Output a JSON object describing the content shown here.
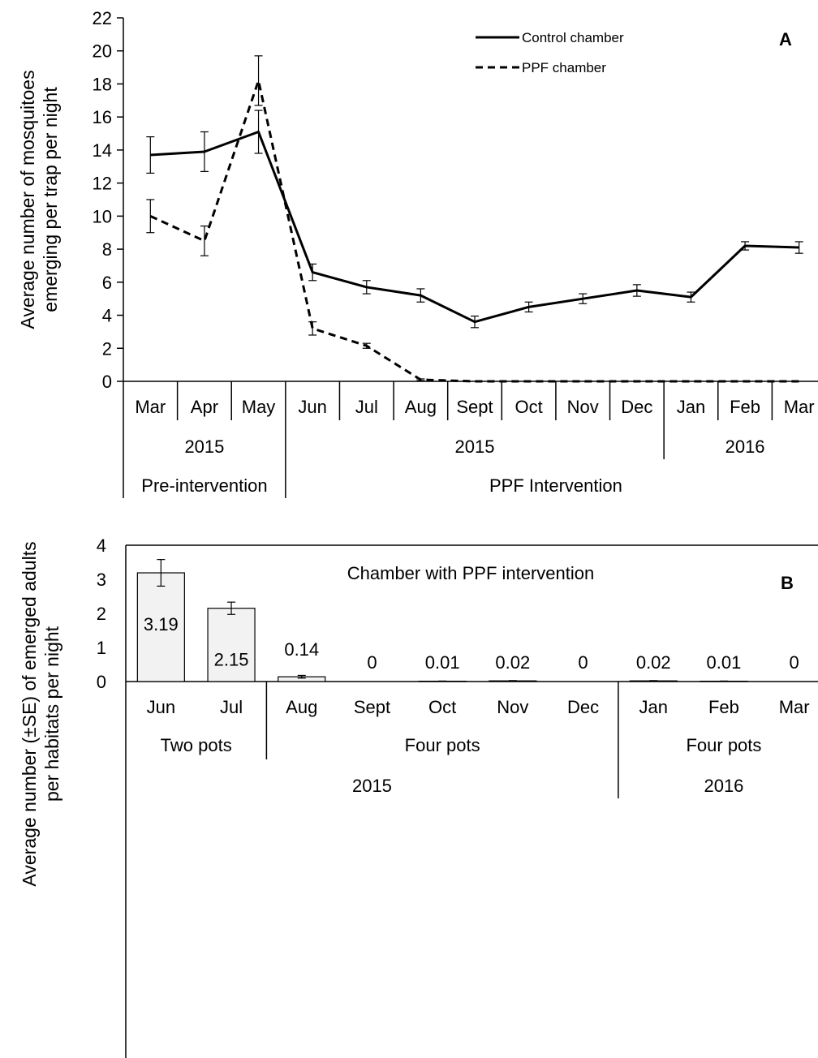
{
  "chart_data": [
    {
      "type": "line",
      "panel_label": "A",
      "ylabel_lines": [
        "Average number of mosquitoes",
        "emerging per trap per night"
      ],
      "ylim": [
        0,
        22
      ],
      "yticks": [
        "0",
        "2",
        "4",
        "6",
        "8",
        "10",
        "12",
        "14",
        "16",
        "18",
        "20",
        "22"
      ],
      "categories": [
        "Mar",
        "Apr",
        "May",
        "Jun",
        "Jul",
        "Aug",
        "Sept",
        "Oct",
        "Nov",
        "Dec",
        "Jan",
        "Feb",
        "Mar"
      ],
      "groups_row1": [
        {
          "label": "2015",
          "span": [
            0,
            3
          ]
        },
        {
          "label": "2015",
          "span": [
            3,
            10
          ]
        },
        {
          "label": "2016",
          "span": [
            10,
            13
          ]
        }
      ],
      "groups_row2": [
        {
          "label": "Pre-intervention",
          "span": [
            0,
            3
          ]
        },
        {
          "label": "PPF Intervention",
          "span": [
            3,
            13
          ]
        }
      ],
      "legend_position": "top-right",
      "series": [
        {
          "name": "Control chamber",
          "style": "solid",
          "values": [
            13.7,
            13.9,
            15.1,
            6.6,
            5.7,
            5.2,
            3.6,
            4.5,
            5.0,
            5.5,
            5.1,
            8.2,
            8.1
          ],
          "errors": [
            1.1,
            1.2,
            1.3,
            0.5,
            0.4,
            0.4,
            0.35,
            0.3,
            0.3,
            0.35,
            0.3,
            0.25,
            0.35
          ]
        },
        {
          "name": "PPF chamber",
          "style": "dashed",
          "values": [
            10.0,
            8.5,
            18.2,
            3.2,
            2.15,
            0.1,
            0.0,
            0.0,
            0.0,
            0.0,
            0.0,
            0.0,
            0.0
          ],
          "errors": [
            1.0,
            0.9,
            1.5,
            0.4,
            0.15,
            0.05,
            0,
            0,
            0,
            0,
            0,
            0,
            0
          ]
        }
      ]
    },
    {
      "type": "bar",
      "panel_label": "B",
      "title": "Chamber with PPF intervention",
      "ylabel_lines": [
        "Average number (±SE) of emerged adults",
        "per habitats per night"
      ],
      "ylim": [
        0,
        4
      ],
      "yticks": [
        "0",
        "1",
        "2",
        "3",
        "4"
      ],
      "categories": [
        "Jun",
        "Jul",
        "Aug",
        "Sept",
        "Oct",
        "Nov",
        "Dec",
        "Jan",
        "Feb",
        "Mar"
      ],
      "values": [
        3.19,
        2.15,
        0.14,
        0,
        0.01,
        0.02,
        0,
        0.02,
        0.01,
        0
      ],
      "errors": [
        0.39,
        0.18,
        0.04,
        0,
        0.005,
        0.008,
        0,
        0.008,
        0.005,
        0
      ],
      "data_labels": [
        "3.19",
        "2.15",
        "0.14",
        "0",
        "0.01",
        "0.02",
        "0",
        "0.02",
        "0.01",
        "0"
      ],
      "groups_row1": [
        {
          "label": "Two pots",
          "span": [
            0,
            2
          ]
        },
        {
          "label": "Four pots",
          "span": [
            2,
            7
          ]
        },
        {
          "label": "Four pots",
          "span": [
            7,
            10
          ]
        }
      ],
      "groups_row2": [
        {
          "label": "2015",
          "span": [
            0,
            7
          ]
        },
        {
          "label": "2016",
          "span": [
            7,
            10
          ]
        }
      ]
    }
  ]
}
